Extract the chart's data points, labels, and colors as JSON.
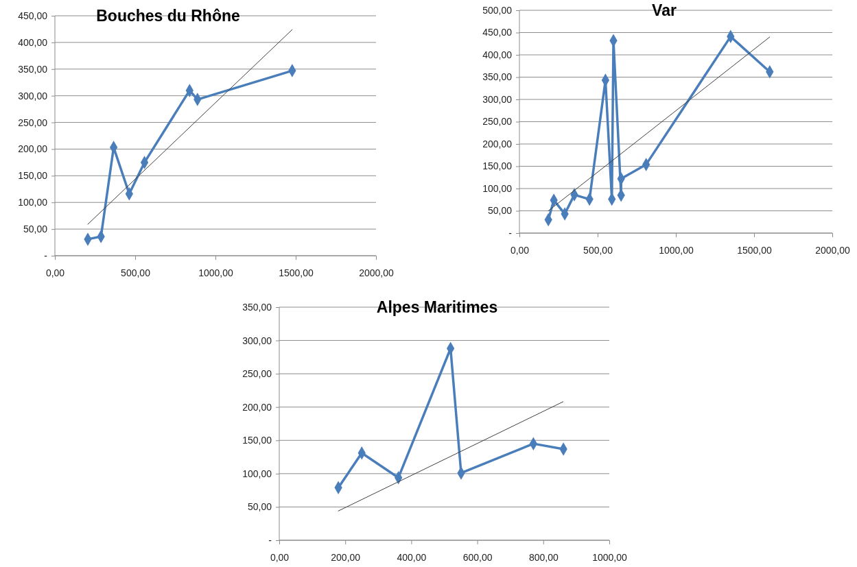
{
  "chart_data": [
    {
      "type": "line",
      "title": "Bouches du Rhône",
      "xlim": [
        0,
        2000
      ],
      "ylim": [
        0,
        450
      ],
      "xticks": [
        {
          "value": 0,
          "label": "0,00"
        },
        {
          "value": 500,
          "label": "500,00"
        },
        {
          "value": 1000,
          "label": "1000,00"
        },
        {
          "value": 1500,
          "label": "1500,00"
        },
        {
          "value": 2000,
          "label": "2000,00"
        }
      ],
      "yticks": [
        {
          "value": 0,
          "label": "-"
        },
        {
          "value": 50,
          "label": "50,00"
        },
        {
          "value": 100,
          "label": "100,00"
        },
        {
          "value": 150,
          "label": "150,00"
        },
        {
          "value": 200,
          "label": "200,00"
        },
        {
          "value": 250,
          "label": "250,00"
        },
        {
          "value": 300,
          "label": "300,00"
        },
        {
          "value": 350,
          "label": "350,00"
        },
        {
          "value": 400,
          "label": "400,00"
        },
        {
          "value": 450,
          "label": "450,00"
        }
      ],
      "grid": "y",
      "series": [
        {
          "color": "#4a7ebb",
          "marker": "diamond",
          "x": [
            205,
            287,
            366,
            463,
            558,
            839,
            888,
            1478
          ],
          "values": [
            31,
            36,
            203,
            116,
            175,
            310,
            293,
            347
          ]
        },
        {
          "color": "#404040",
          "marker": "none",
          "x": [
            205,
            1478
          ],
          "values": [
            59,
            424
          ]
        }
      ]
    },
    {
      "type": "line",
      "title": "Var",
      "xlim": [
        0,
        2000
      ],
      "ylim": [
        0,
        500
      ],
      "xticks": [
        {
          "value": 0,
          "label": "0,00"
        },
        {
          "value": 500,
          "label": "500,00"
        },
        {
          "value": 1000,
          "label": "1000,00"
        },
        {
          "value": 1500,
          "label": "1500,00"
        },
        {
          "value": 2000,
          "label": "2000,00"
        }
      ],
      "yticks": [
        {
          "value": 0,
          "label": "-"
        },
        {
          "value": 50,
          "label": "50,00"
        },
        {
          "value": 100,
          "label": "100,00"
        },
        {
          "value": 150,
          "label": "150,00"
        },
        {
          "value": 200,
          "label": "200,00"
        },
        {
          "value": 250,
          "label": "250,00"
        },
        {
          "value": 300,
          "label": "300,00"
        },
        {
          "value": 350,
          "label": "350,00"
        },
        {
          "value": 400,
          "label": "400,00"
        },
        {
          "value": 450,
          "label": "450,00"
        },
        {
          "value": 500,
          "label": "500,00"
        }
      ],
      "grid": "y",
      "series": [
        {
          "color": "#4a7ebb",
          "marker": "diamond",
          "x": [
            185,
            220,
            290,
            351,
            448,
            550,
            591,
            601,
            650,
            650,
            810,
            1350,
            1600
          ],
          "values": [
            30,
            74,
            43,
            86,
            76,
            343,
            76,
            432,
            85,
            122,
            154,
            441,
            362
          ]
        },
        {
          "color": "#404040",
          "marker": "none",
          "x": [
            185,
            1600
          ],
          "values": [
            50,
            440
          ]
        }
      ]
    },
    {
      "type": "line",
      "title": "Alpes Maritimes",
      "xlim": [
        0,
        1000
      ],
      "ylim": [
        0,
        350
      ],
      "xticks": [
        {
          "value": 0,
          "label": "0,00"
        },
        {
          "value": 200,
          "label": "200,00"
        },
        {
          "value": 400,
          "label": "400,00"
        },
        {
          "value": 600,
          "label": "600,00"
        },
        {
          "value": 800,
          "label": "800,00"
        },
        {
          "value": 1000,
          "label": "1000,00"
        }
      ],
      "yticks": [
        {
          "value": 0,
          "label": "-"
        },
        {
          "value": 50,
          "label": "50,00"
        },
        {
          "value": 100,
          "label": "100,00"
        },
        {
          "value": 150,
          "label": "150,00"
        },
        {
          "value": 200,
          "label": "200,00"
        },
        {
          "value": 250,
          "label": "250,00"
        },
        {
          "value": 300,
          "label": "300,00"
        },
        {
          "value": 350,
          "label": "350,00"
        }
      ],
      "grid": "y",
      "series": [
        {
          "color": "#4a7ebb",
          "marker": "diamond",
          "x": [
            179,
            250,
            361,
            519,
            551,
            770,
            861
          ],
          "values": [
            79,
            131,
            94,
            288,
            101,
            145,
            137
          ]
        },
        {
          "color": "#404040",
          "marker": "none",
          "x": [
            179,
            860
          ],
          "values": [
            44,
            208
          ]
        }
      ]
    }
  ]
}
